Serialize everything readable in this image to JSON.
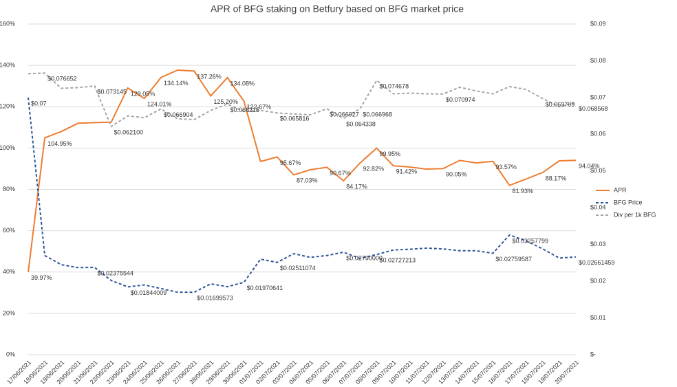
{
  "chart_data": {
    "type": "line",
    "title": "APR of BFG staking on Betfury based on BFG market price",
    "categories": [
      "17/06/2021",
      "18/06/2021",
      "19/06/2021",
      "20/06/2021",
      "21/06/2021",
      "22/06/2021",
      "23/06/2021",
      "24/06/2021",
      "25/06/2021",
      "26/06/2021",
      "27/06/2021",
      "28/06/2021",
      "29/06/2021",
      "30/06/2021",
      "01/07/2021",
      "02/07/2021",
      "03/07/2021",
      "04/07/2021",
      "05/07/2021",
      "06/07/2021",
      "07/07/2021",
      "08/07/2021",
      "09/07/2021",
      "10/07/2021",
      "11/07/2021",
      "12/07/2021",
      "13/07/2021",
      "14/07/2021",
      "15/07/2021",
      "16/07/2021",
      "17/07/2021",
      "18/07/2021",
      "19/07/2021",
      "20/07/2021"
    ],
    "ylim": [
      0,
      160
    ],
    "yticks": [
      {
        "value": 0,
        "label": "0%"
      },
      {
        "value": 20,
        "label": "20%"
      },
      {
        "value": 40,
        "label": "40%"
      },
      {
        "value": 60,
        "label": "60%"
      },
      {
        "value": 80,
        "label": "80%"
      },
      {
        "value": 100,
        "label": "100%"
      },
      {
        "value": 120,
        "label": "120%"
      },
      {
        "value": 140,
        "label": "140%"
      },
      {
        "value": 160,
        "label": "160%"
      }
    ],
    "y2lim": [
      0,
      0.09
    ],
    "y2ticks": [
      {
        "value": 0,
        "label": "$-"
      },
      {
        "value": 0.01,
        "label": "$0.01"
      },
      {
        "value": 0.02,
        "label": "$0.02"
      },
      {
        "value": 0.03,
        "label": "$0.03"
      },
      {
        "value": 0.04,
        "label": "$0.04"
      },
      {
        "value": 0.05,
        "label": "$0.05"
      },
      {
        "value": 0.06,
        "label": "$0.06"
      },
      {
        "value": 0.07,
        "label": "$0.07"
      },
      {
        "value": 0.08,
        "label": "$0.08"
      },
      {
        "value": 0.09,
        "label": "$0.09"
      }
    ],
    "grid": true,
    "legend": "right",
    "series": [
      {
        "name": "APR",
        "color": "#ed7d31",
        "dashed": false,
        "values": [
          39.97,
          104.95,
          108,
          112,
          112.3,
          112.5,
          129.05,
          124.01,
          134.14,
          137.7,
          137.26,
          125.2,
          134.08,
          122.67,
          93.5,
          95.67,
          87.03,
          89.5,
          90.67,
          84.17,
          92.82,
          99.95,
          91.42,
          90.8,
          89.8,
          90.05,
          94,
          92.8,
          93.57,
          81.93,
          85,
          88.17,
          93.8,
          94.04
        ],
        "value_labels": [
          "39.97%",
          "104.95%",
          null,
          null,
          null,
          null,
          "129.05%",
          "124.01%",
          "134.14%",
          null,
          "137.26%",
          "125.20%",
          "134.08%",
          "122.67%",
          null,
          "95.67%",
          "87.03%",
          null,
          "90.67%",
          "84.17%",
          "92.82%",
          "99.95%",
          "91.42%",
          null,
          null,
          "90.05%",
          null,
          null,
          "93.57%",
          "81.93%",
          null,
          "88.17%",
          null,
          "94.04%"
        ]
      },
      {
        "name": "BFG Price",
        "color": "#2f5597",
        "dashed": true,
        "axis": "y2",
        "values": [
          0.07,
          0.027,
          0.0245,
          0.0237,
          0.02375544,
          0.0202,
          0.01844009,
          0.019,
          0.018,
          0.017,
          0.01699573,
          0.0193,
          0.0185,
          0.01970641,
          0.026,
          0.02511074,
          0.0275,
          0.0265,
          0.027,
          0.0279,
          0.0262,
          0.02727213,
          0.0285,
          0.0287,
          0.029,
          0.0288,
          0.0283,
          0.0283,
          0.02759587,
          0.03257799,
          0.031,
          0.0288,
          0.0263,
          0.02661459
        ],
        "value_labels": [
          "$0.07",
          null,
          null,
          null,
          "$0.02375544",
          null,
          "$0.01844009",
          null,
          null,
          null,
          "$0.01699573",
          null,
          null,
          "$0.01970641",
          null,
          "$0.02511074",
          null,
          null,
          null,
          "$0.02790000",
          null,
          "$0.02727213",
          null,
          null,
          null,
          null,
          null,
          null,
          "$0.02759587",
          "$0.03257799",
          null,
          null,
          null,
          "$0.02661459"
        ]
      },
      {
        "name": "Div per 1k BFG",
        "color": "#a5a5a5",
        "dashed": true,
        "axis": "y2",
        "values": [
          0.0765,
          0.076652,
          0.0725,
          0.0727,
          0.073145,
          0.0621,
          0.065,
          0.0645,
          0.066904,
          0.0642,
          0.064,
          0.0665,
          0.068215,
          0.0662,
          0.0665,
          0.065816,
          0.0655,
          0.0653,
          0.066927,
          0.064338,
          0.066968,
          0.074678,
          0.071,
          0.0712,
          0.071,
          0.070974,
          0.0728,
          0.0718,
          0.071,
          0.073,
          0.0722,
          0.069709,
          0.0675,
          0.068568
        ],
        "value_labels": [
          null,
          "$0.076652",
          null,
          null,
          "$0.073145",
          "$0.062100",
          null,
          null,
          "$0.066904",
          null,
          null,
          null,
          "$0.068215",
          null,
          null,
          "$0.065816",
          null,
          null,
          "$0.066927",
          "$0.064338",
          "$0.066968",
          "$0.074678",
          null,
          null,
          null,
          "$0.070974",
          null,
          null,
          null,
          null,
          null,
          "$0.069709",
          null,
          "$0.068568"
        ]
      }
    ]
  }
}
